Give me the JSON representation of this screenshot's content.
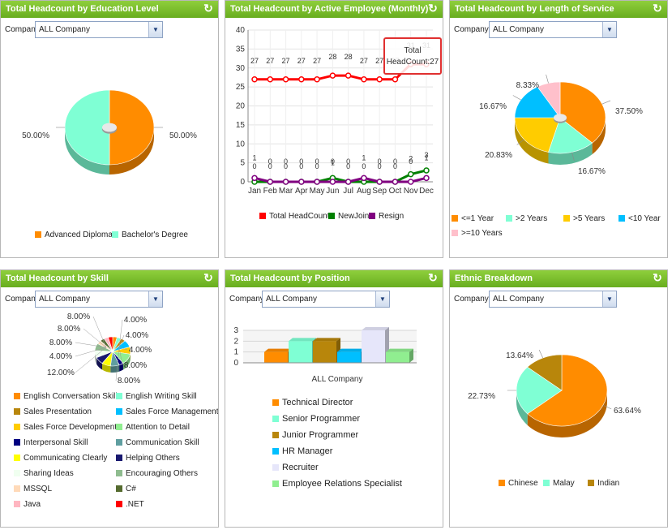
{
  "panels": {
    "education": {
      "title": "Total Headcount by Education Level",
      "company_label": "Company:",
      "company_value": "ALL Company",
      "slices": [
        {
          "label": "Advanced Diploma",
          "value": 50.0,
          "pct": "50.00%",
          "color": "#ff8c00"
        },
        {
          "label": "Bachelor's Degree",
          "value": 50.0,
          "pct": "50.00%",
          "color": "#7fffd4"
        }
      ]
    },
    "active": {
      "title": "Total Headcount by Active Employee (Monthly)",
      "months": [
        "Jan",
        "Feb",
        "Mar",
        "Apr",
        "May",
        "Jun",
        "Jul",
        "Aug",
        "Sep",
        "Oct",
        "Nov",
        "Dec"
      ],
      "yticks": [
        "0",
        "5",
        "10",
        "15",
        "20",
        "25",
        "30",
        "35",
        "40"
      ],
      "series": [
        {
          "name": "Total HeadCount",
          "color": "#ff0000",
          "values": [
            27,
            27,
            27,
            27,
            27,
            28,
            28,
            27,
            27,
            27,
            31,
            31
          ],
          "labels": [
            "27",
            "27",
            "27",
            "27",
            "27",
            "28",
            "28",
            "27",
            "27",
            "27",
            "31",
            "31"
          ]
        },
        {
          "name": "NewJoin",
          "color": "#008000",
          "values": [
            0,
            0,
            0,
            0,
            0,
            1,
            0,
            0,
            0,
            0,
            2,
            3
          ],
          "labels": [
            "0",
            "0",
            "0",
            "0",
            "0",
            "1",
            "0",
            "0",
            "0",
            "0",
            "2",
            "3"
          ]
        },
        {
          "name": "Resign",
          "color": "#800080",
          "values": [
            1,
            0,
            0,
            0,
            0,
            0,
            0,
            1,
            0,
            0,
            0,
            1
          ],
          "labels": [
            "1",
            "0",
            "0",
            "0",
            "0",
            "0",
            "0",
            "1",
            "0",
            "0",
            "0",
            "1"
          ]
        }
      ],
      "tooltip_line1": "Total",
      "tooltip_line2": "HeadCount:27"
    },
    "service": {
      "title": "Total Headcount by Length of Service",
      "company_label": "Company:",
      "company_value": "ALL Company",
      "slices": [
        {
          "label": "<=1 Year",
          "value": 37.5,
          "pct": "37.50%",
          "color": "#ff8c00"
        },
        {
          "label": ">2 Years",
          "value": 16.67,
          "pct": "16.67%",
          "color": "#7fffd4"
        },
        {
          "label": ">5 Years",
          "value": 20.83,
          "pct": "20.83%",
          "color": "#ffcc00"
        },
        {
          "label": "<10 Year",
          "value": 16.67,
          "pct": "16.67%",
          "color": "#00bfff"
        },
        {
          "label": ">=10 Years",
          "value": 8.33,
          "pct": "8.33%",
          "color": "#ffc0cb"
        }
      ]
    },
    "skill": {
      "title": "Total Headcount by Skill",
      "company_label": "Company:",
      "company_value": "ALL Company",
      "slices": [
        {
          "label": "English Conversation Skill",
          "value": 4,
          "pct": "4.00%",
          "color": "#ff8c00"
        },
        {
          "label": "English Writing Skill",
          "value": 4,
          "pct": "4.00%",
          "color": "#7fffd4"
        },
        {
          "label": "Sales Presentation",
          "value": 4,
          "pct": "4.00%",
          "color": "#b8860b"
        },
        {
          "label": "Sales Force Management",
          "value": 8,
          "pct": "8.00%",
          "color": "#00bfff"
        },
        {
          "label": "Sales Force Development",
          "value": 8,
          "pct": "8.00%",
          "color": "#ffcc00"
        },
        {
          "label": "Attention to Detail",
          "value": 12,
          "pct": "12.00%",
          "color": "#90ee90"
        },
        {
          "label": "Interpersonal Skill",
          "value": 4,
          "pct": "4.00%",
          "color": "#000080"
        },
        {
          "label": "Communication Skill",
          "value": 8,
          "pct": "8.00%",
          "color": "#5f9ea0"
        },
        {
          "label": "Communicating Clearly",
          "value": 8,
          "pct": "8.00%",
          "color": "#ffff00"
        },
        {
          "label": "Helping Others",
          "value": 8,
          "pct": "8.00%",
          "color": "#191970"
        },
        {
          "label": "Sharing Ideas",
          "value": 8,
          "pct": "8.00%",
          "color": "#f0fff0"
        },
        {
          "label": "Encouraging Others",
          "value": 8,
          "pct": "8.00%",
          "color": "#8fbc8f"
        },
        {
          "label": "MSSQL",
          "value": 4,
          "pct": "",
          "color": "#ffdab9"
        },
        {
          "label": "C#",
          "value": 4,
          "pct": "",
          "color": "#556b2f"
        },
        {
          "label": "Java",
          "value": 4,
          "pct": "",
          "color": "#ffb6c1"
        },
        {
          "label": ".NET",
          "value": 4,
          "pct": "",
          "color": "#ff0000"
        }
      ]
    },
    "position": {
      "title": "Total Headcount by Position",
      "company_label": "Company:",
      "company_value": "ALL Company",
      "category": "ALL Company",
      "yticks": [
        "0",
        "1",
        "2",
        "3"
      ],
      "bars": [
        {
          "label": "Technical Director",
          "value": 1,
          "color": "#ff8c00"
        },
        {
          "label": "Senior Programmer",
          "value": 2,
          "color": "#7fffd4"
        },
        {
          "label": "Junior Programmer",
          "value": 2,
          "color": "#b8860b"
        },
        {
          "label": "HR Manager",
          "value": 1,
          "color": "#00bfff"
        },
        {
          "label": "Recruiter",
          "value": 3,
          "color": "#e6e6fa"
        },
        {
          "label": "Employee Relations Specialist",
          "value": 1,
          "color": "#90ee90"
        }
      ]
    },
    "ethnic": {
      "title": "Ethnic Breakdown",
      "company_label": "Company:",
      "company_value": "ALL Company",
      "slices": [
        {
          "label": "Chinese",
          "value": 63.64,
          "pct": "63.64%",
          "color": "#ff8c00"
        },
        {
          "label": "Malay",
          "value": 22.73,
          "pct": "22.73%",
          "color": "#7fffd4"
        },
        {
          "label": "Indian",
          "value": 13.64,
          "pct": "13.64%",
          "color": "#b8860b"
        }
      ]
    }
  },
  "icons": {
    "refresh": "refresh-icon",
    "dropdown": "chevron-down-icon"
  },
  "glyphs": {
    "refresh": "↻",
    "dropdown": "▼"
  }
}
